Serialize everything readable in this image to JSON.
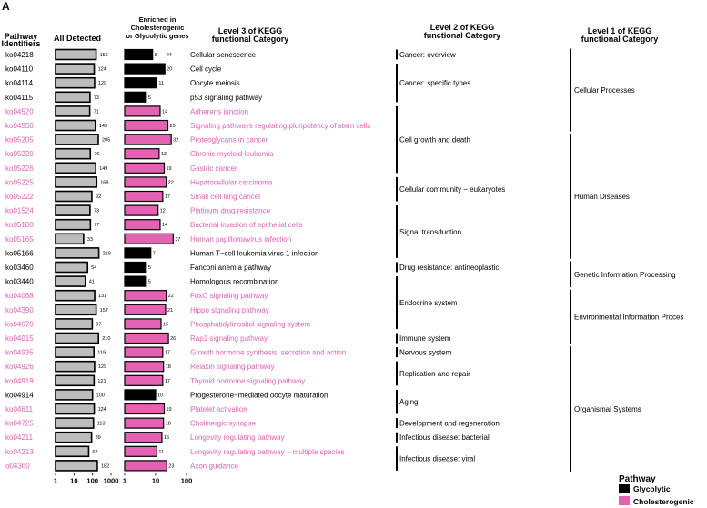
{
  "panel_label": "A",
  "chart_data": {
    "type": "bar",
    "headers": {
      "pathway_ids": [
        "Pathway",
        "Identifiers"
      ],
      "all_detected": "All Detected",
      "enriched": [
        "Enriched in",
        "Cholesterogenic",
        "or Glycolytic genes"
      ],
      "level3": [
        "Level 3 of KEGG",
        "functional Category"
      ],
      "level2": [
        "Level 2 of KEGG",
        "functional Category"
      ],
      "level1": [
        "Level 1 of KEGG",
        "functional Category"
      ]
    },
    "axis_all_detected": {
      "scale": "log10",
      "xlim": [
        1,
        1000
      ],
      "ticks": [
        "1",
        "10",
        "100",
        "1000"
      ]
    },
    "axis_enriched": {
      "scale": "log10",
      "xlim": [
        1,
        100
      ],
      "ticks": [
        "1",
        "10",
        "100"
      ]
    },
    "colors": {
      "Glycolytic": "#000000",
      "Cholesterogenic": "#e562b3",
      "all_detected": "#bdbdbd"
    },
    "legend": {
      "title": "Pathway",
      "items": [
        "Glycolytic",
        "Cholesterogenic"
      ]
    },
    "rows": [
      {
        "id": "ko04218",
        "name": "Cellular senescence",
        "all": 156,
        "enriched": 8,
        "extra": "24",
        "type": "Glycolytic"
      },
      {
        "id": "ko04110",
        "name": "Cell cycle",
        "all": 124,
        "enriched": 20,
        "type": "Glycolytic"
      },
      {
        "id": "ko04114",
        "name": "Oocyte meiosis",
        "all": 129,
        "enriched": 11,
        "type": "Glycolytic"
      },
      {
        "id": "ko04115",
        "name": "p53 signaling pathway",
        "all": 73,
        "enriched": 5,
        "type": "Glycolytic"
      },
      {
        "id": "ko04520",
        "name": "Adherens junction",
        "all": 71,
        "enriched": 14,
        "type": "Cholesterogenic"
      },
      {
        "id": "ko04550",
        "name": "Signaling pathways regulating pluripotency of stem cells",
        "all": 143,
        "enriched": 25,
        "type": "Cholesterogenic"
      },
      {
        "id": "ko05205",
        "name": "Proteoglycans in cancer",
        "all": 205,
        "enriched": 32,
        "type": "Cholesterogenic"
      },
      {
        "id": "ko05220",
        "name": "Chronic myeloid leukemia",
        "all": 76,
        "enriched": 13,
        "type": "Cholesterogenic"
      },
      {
        "id": "ko05226",
        "name": "Gastric cancer",
        "all": 149,
        "enriched": 19,
        "type": "Cholesterogenic"
      },
      {
        "id": "ko05225",
        "name": "Hepatocellular carcinoma",
        "all": 168,
        "enriched": 22,
        "type": "Cholesterogenic"
      },
      {
        "id": "ko05222",
        "name": "Small cell lung cancer",
        "all": 92,
        "enriched": 17,
        "type": "Cholesterogenic"
      },
      {
        "id": "ko01524",
        "name": "Platinum drug resistance",
        "all": 73,
        "enriched": 12,
        "type": "Cholesterogenic"
      },
      {
        "id": "ko05100",
        "name": "Bacterial invasion of epithelial cells",
        "all": 77,
        "enriched": 14,
        "type": "Cholesterogenic"
      },
      {
        "id": "ko05165",
        "name": "Human papillomavirus infection",
        "all": 33,
        "enriched": 37,
        "type": "Cholesterogenic"
      },
      {
        "id": "ko05166",
        "name": "Human T−cell leukemia virus 1 infection",
        "all": 219,
        "enriched": 7,
        "type": "Glycolytic"
      },
      {
        "id": "ko03460",
        "name": "Fanconi anemia pathway",
        "all": 54,
        "enriched": 5,
        "type": "Glycolytic"
      },
      {
        "id": "ko03440",
        "name": "Homologous recombination",
        "all": 41,
        "enriched": 5,
        "type": "Glycolytic"
      },
      {
        "id": "ko04068",
        "name": "FoxO signaling pathway",
        "all": 131,
        "enriched": 22,
        "type": "Cholesterogenic"
      },
      {
        "id": "ko04390",
        "name": "Hippo signaling pathway",
        "all": 157,
        "enriched": 21,
        "type": "Cholesterogenic"
      },
      {
        "id": "ko04070",
        "name": "Phosphatidylinositol signaling system",
        "all": 97,
        "enriched": 15,
        "type": "Cholesterogenic"
      },
      {
        "id": "ko04015",
        "name": "Rap1 signaling pathway",
        "all": 210,
        "enriched": 26,
        "type": "Cholesterogenic"
      },
      {
        "id": "ko04935",
        "name": "Growth hormone synthesis, secretion and action",
        "all": 119,
        "enriched": 17,
        "type": "Cholesterogenic"
      },
      {
        "id": "ko04926",
        "name": "Relaxin signaling pathway",
        "all": 129,
        "enriched": 18,
        "type": "Cholesterogenic"
      },
      {
        "id": "ko04919",
        "name": "Thyroid hormone signaling pathway",
        "all": 121,
        "enriched": 17,
        "type": "Cholesterogenic"
      },
      {
        "id": "ko04914",
        "name": "Progesterone−mediated oocyte maturation",
        "all": 100,
        "enriched": 10,
        "type": "Glycolytic"
      },
      {
        "id": "ko04611",
        "name": "Platelet activation",
        "all": 124,
        "enriched": 19,
        "type": "Cholesterogenic"
      },
      {
        "id": "ko04725",
        "name": "Cholinergic synapse",
        "all": 113,
        "enriched": 18,
        "type": "Cholesterogenic"
      },
      {
        "id": "ko04211",
        "name": "Longevity regulating pathway",
        "all": 89,
        "enriched": 16,
        "type": "Cholesterogenic"
      },
      {
        "id": "ko04213",
        "name": "Longevity regulating pathway − multiple species",
        "all": 62,
        "enriched": 11,
        "type": "Cholesterogenic"
      },
      {
        "id": "o04360",
        "name": "Axon guidance",
        "all": 182,
        "enriched": 23,
        "type": "Cholesterogenic"
      }
    ],
    "level2_groups": [
      {
        "label": "Cancer: overview",
        "from": 0,
        "to": 0
      },
      {
        "label": "Cancer: specific types",
        "from": 1,
        "to": 3
      },
      {
        "label": "Cell growth and death",
        "from": 4,
        "to": 8
      },
      {
        "label": "Cellular community − eukaryotes",
        "from": 9,
        "to": 10
      },
      {
        "label": "Signal transduction",
        "from": 11,
        "to": 14
      },
      {
        "label": "Drug resistance: antineoplastic",
        "from": 15,
        "to": 15
      },
      {
        "label": "Endocrine system",
        "from": 16,
        "to": 19
      },
      {
        "label": "Immune system",
        "from": 20,
        "to": 20
      },
      {
        "label": "Nervous system",
        "from": 21,
        "to": 21
      },
      {
        "label": "Replication and repair",
        "from": 22,
        "to": 23
      },
      {
        "label": "Aging",
        "from": 24,
        "to": 25
      },
      {
        "label": "Development and regeneration",
        "from": 26,
        "to": 26
      },
      {
        "label": "Infectious disease: bacterial",
        "from": 27,
        "to": 27
      },
      {
        "label": "Infectious disease: viral",
        "from": 28,
        "to": 29
      }
    ],
    "level1_groups": [
      {
        "label": "Cellular Processes",
        "from": 0,
        "to": 5
      },
      {
        "label": "Human Diseases",
        "from": 6,
        "to": 14
      },
      {
        "label": "Genetic Information Processing",
        "from": 15,
        "to": 16
      },
      {
        "label": "Environmental Information Proces",
        "from": 17,
        "to": 20
      },
      {
        "label": "Organismal Systems",
        "from": 21,
        "to": 29
      }
    ]
  }
}
